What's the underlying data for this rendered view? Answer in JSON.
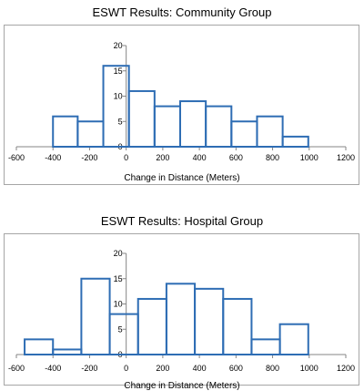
{
  "chart_data": [
    {
      "type": "bar",
      "title": "ESWT Results: Community Group",
      "xlabel": "Change in Distance (Meters)",
      "ylabel": "",
      "xlim": [
        -600,
        1200
      ],
      "ylim": [
        0,
        20
      ],
      "x_ticks": [
        -600,
        -400,
        -200,
        0,
        200,
        400,
        600,
        800,
        1000,
        1200
      ],
      "y_ticks": [
        0,
        5,
        10,
        15,
        20
      ],
      "grid": false,
      "bins": [
        {
          "start": -400,
          "end": -265,
          "value": 6
        },
        {
          "start": -265,
          "end": -125,
          "value": 5
        },
        {
          "start": -125,
          "end": 15,
          "value": 16
        },
        {
          "start": 15,
          "end": 155,
          "value": 11
        },
        {
          "start": 155,
          "end": 295,
          "value": 8
        },
        {
          "start": 295,
          "end": 435,
          "value": 9
        },
        {
          "start": 435,
          "end": 575,
          "value": 8
        },
        {
          "start": 575,
          "end": 715,
          "value": 5
        },
        {
          "start": 715,
          "end": 855,
          "value": 6
        },
        {
          "start": 855,
          "end": 995,
          "value": 2
        }
      ],
      "bar_color": "#2e6db4"
    },
    {
      "type": "bar",
      "title": "ESWT Results: Hospital Group",
      "xlabel": "Change in Distance (Meters)",
      "ylabel": "",
      "xlim": [
        -600,
        1200
      ],
      "ylim": [
        0,
        20
      ],
      "x_ticks": [
        -600,
        -400,
        -200,
        0,
        200,
        400,
        600,
        800,
        1000,
        1200
      ],
      "y_ticks": [
        0,
        5,
        10,
        15,
        20
      ],
      "grid": false,
      "bins": [
        {
          "start": -555,
          "end": -400,
          "value": 3
        },
        {
          "start": -400,
          "end": -245,
          "value": 1
        },
        {
          "start": -245,
          "end": -90,
          "value": 15
        },
        {
          "start": -90,
          "end": 65,
          "value": 8
        },
        {
          "start": 65,
          "end": 220,
          "value": 11
        },
        {
          "start": 220,
          "end": 375,
          "value": 14
        },
        {
          "start": 375,
          "end": 530,
          "value": 13
        },
        {
          "start": 530,
          "end": 685,
          "value": 11
        },
        {
          "start": 685,
          "end": 840,
          "value": 3
        },
        {
          "start": 840,
          "end": 995,
          "value": 6
        }
      ],
      "bar_color": "#2e6db4"
    }
  ]
}
